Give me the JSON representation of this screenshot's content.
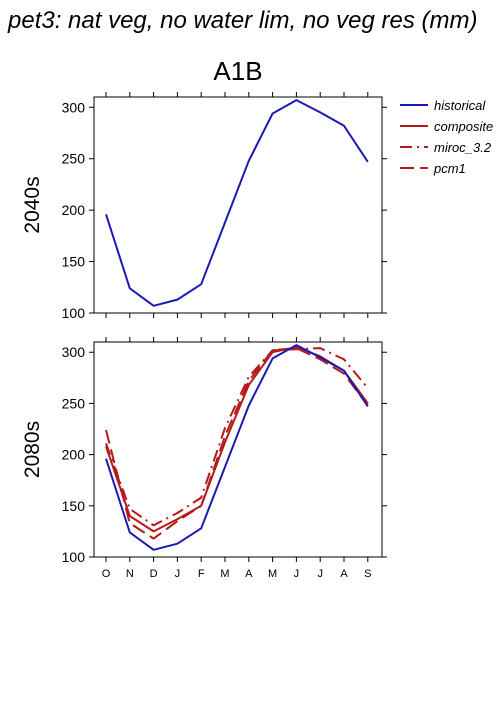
{
  "figure": {
    "title": "pet3: nat veg, no water lim, no veg res (mm)",
    "scenario": "A1B"
  },
  "legend": {
    "items": [
      {
        "label": "historical",
        "color": "#1a1ab4",
        "dash": "solid"
      },
      {
        "label": "composite",
        "color": "#b41a1a",
        "dash": "solid"
      },
      {
        "label": "miroc_3.2",
        "color": "#b41a1a",
        "dash": "dashdot"
      },
      {
        "label": "pcm1",
        "color": "#b41a1a",
        "dash": "dashed"
      }
    ]
  },
  "chart_data": [
    {
      "type": "line",
      "row_label": "2040s",
      "categories": [
        "O",
        "N",
        "D",
        "J",
        "F",
        "M",
        "A",
        "M",
        "J",
        "J",
        "A",
        "S"
      ],
      "ylim": [
        100,
        310
      ],
      "yticks": [
        100,
        150,
        200,
        250,
        300
      ],
      "series": [
        {
          "name": "historical",
          "color": "#1a1ab4",
          "dash": "solid",
          "values": [
            196,
            124,
            107,
            113,
            128,
            188,
            248,
            294,
            307,
            295,
            282,
            247
          ]
        }
      ]
    },
    {
      "type": "line",
      "row_label": "2080s",
      "categories": [
        "O",
        "N",
        "D",
        "J",
        "F",
        "M",
        "A",
        "M",
        "J",
        "J",
        "A",
        "S"
      ],
      "ylim": [
        100,
        310
      ],
      "yticks": [
        100,
        150,
        200,
        250,
        300
      ],
      "series": [
        {
          "name": "historical",
          "color": "#1a1ab4",
          "dash": "solid",
          "values": [
            196,
            124,
            107,
            113,
            128,
            188,
            248,
            294,
            307,
            295,
            282,
            247
          ]
        },
        {
          "name": "composite",
          "color": "#b41a1a",
          "dash": "solid",
          "values": [
            208,
            140,
            125,
            137,
            150,
            212,
            268,
            300,
            305,
            296,
            282,
            250
          ]
        },
        {
          "name": "miroc_3.2",
          "color": "#b41a1a",
          "dash": "dashdot",
          "values": [
            211,
            147,
            131,
            143,
            158,
            226,
            276,
            302,
            303,
            304,
            293,
            265
          ]
        },
        {
          "name": "pcm1",
          "color": "#b41a1a",
          "dash": "dashed",
          "values": [
            224,
            133,
            118,
            135,
            150,
            218,
            272,
            302,
            304,
            293,
            279,
            248
          ]
        }
      ]
    }
  ]
}
